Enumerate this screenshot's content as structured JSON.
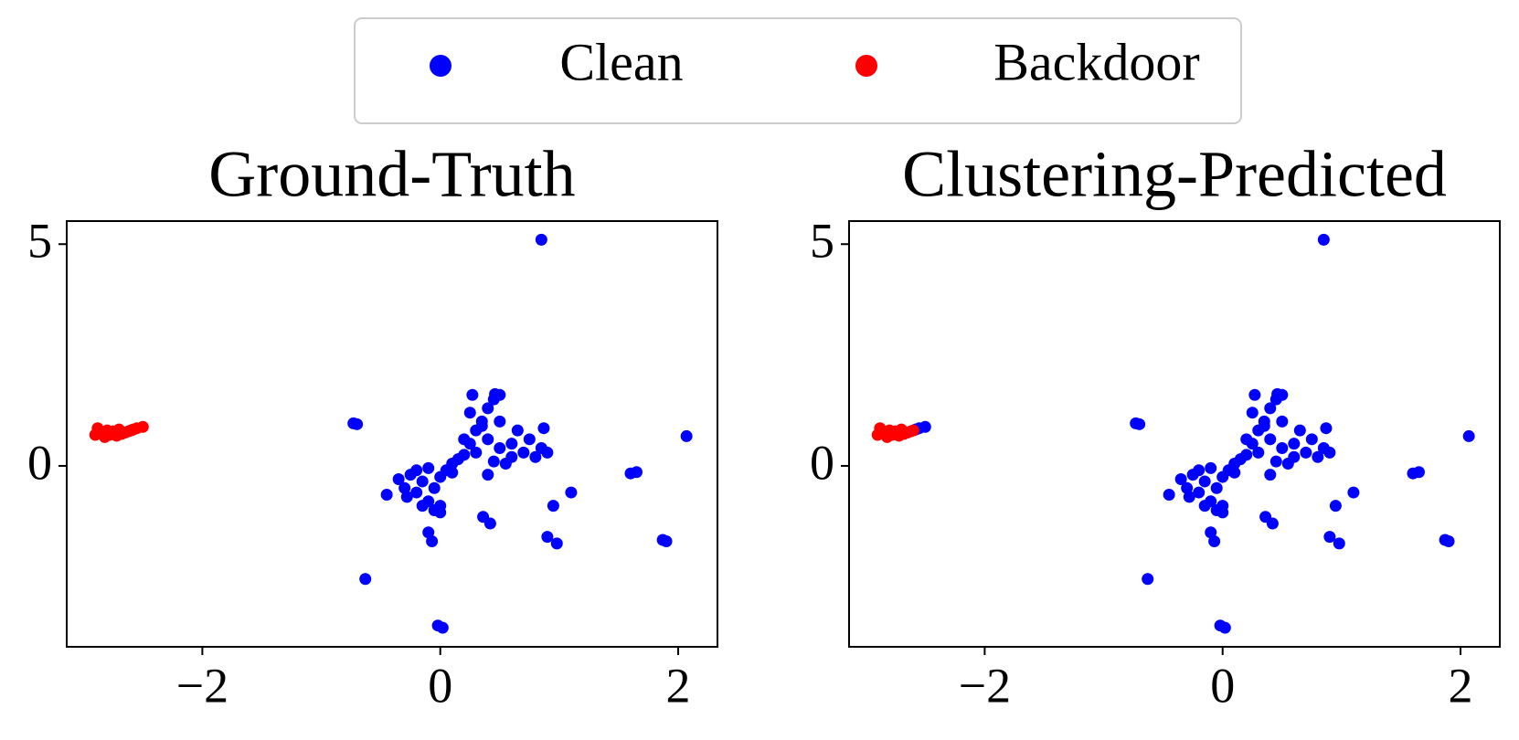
{
  "chart_data": [
    {
      "type": "scatter",
      "title": "Ground-Truth",
      "xlim": [
        -3.14,
        2.33
      ],
      "ylim": [
        -4.08,
        5.52
      ],
      "xticks": [
        {
          "value": -2,
          "label": "−2"
        },
        0,
        2
      ],
      "yticks": [
        0,
        5
      ],
      "series": [
        {
          "name": "Clean",
          "color": "#0000ff",
          "x": [
            0.85,
            -0.73,
            -0.7,
            2.07,
            1.6,
            1.65,
            0.87,
            0.95,
            1.1,
            0.36,
            0.42,
            0.9,
            0.98,
            1.87,
            1.9,
            -0.1,
            -0.07,
            -0.63,
            -0.02,
            0.02,
            -0.45,
            0.27,
            0.46,
            -0.35,
            -0.3,
            -0.25,
            -0.2,
            -0.15,
            -0.1,
            -0.05,
            0,
            0,
            -0.2,
            -0.1,
            -0.28,
            -0.05,
            0,
            -0.15,
            0.05,
            0.1,
            0.15,
            0.2,
            0.1,
            0.25,
            0.3,
            0.35,
            0.4,
            0.45,
            0.5,
            0.3,
            0.4,
            0.5,
            0.6,
            0.7,
            0.75,
            0.8,
            0.45,
            0.55,
            0.35,
            0.25,
            0.65,
            0.85,
            0.6,
            0.2,
            0.5,
            0.4,
            0.9
          ],
          "y": [
            5.1,
            0.96,
            0.94,
            0.67,
            -0.17,
            -0.14,
            0.85,
            -0.9,
            -0.6,
            -1.15,
            -1.3,
            -1.6,
            -1.75,
            -1.67,
            -1.7,
            -1.5,
            -1.7,
            -2.55,
            -3.6,
            -3.65,
            -0.65,
            1.6,
            1.62,
            -0.3,
            -0.5,
            -0.2,
            -0.6,
            -0.35,
            -0.8,
            -0.5,
            -0.9,
            -0.25,
            -0.1,
            -0.05,
            -0.7,
            -1.0,
            -1.05,
            -0.9,
            -0.1,
            0.05,
            0.15,
            0.25,
            -0.15,
            0.5,
            0.8,
            1.0,
            1.3,
            1.5,
            1.6,
            0.3,
            0.6,
            0.4,
            0.5,
            0.3,
            0.6,
            0.2,
            0.1,
            0.05,
            0.9,
            1.2,
            0.8,
            0.4,
            0.2,
            0.6,
            1.0,
            -0.2,
            0.3
          ]
        },
        {
          "name": "Backdoor",
          "color": "#ff0000",
          "x": [
            -2.9,
            -2.88,
            -2.85,
            -2.82,
            -2.8,
            -2.78,
            -2.75,
            -2.72,
            -2.7,
            -2.68,
            -2.65,
            -2.62,
            -2.6,
            -2.58,
            -2.55,
            -2.5
          ],
          "y": [
            0.7,
            0.85,
            0.75,
            0.65,
            0.8,
            0.7,
            0.78,
            0.68,
            0.82,
            0.72,
            0.75,
            0.78,
            0.8,
            0.82,
            0.85,
            0.88
          ]
        }
      ]
    },
    {
      "type": "scatter",
      "title": "Clustering-Predicted",
      "xlim": [
        -3.14,
        2.33
      ],
      "ylim": [
        -4.08,
        5.52
      ],
      "xticks": [
        {
          "value": -2,
          "label": "−2"
        },
        0,
        2
      ],
      "yticks": [
        0,
        5
      ],
      "series": [
        {
          "color": "#0000ff",
          "x": [
            0.85,
            -0.73,
            -0.7,
            2.07,
            1.6,
            1.65,
            0.87,
            0.95,
            1.1,
            0.36,
            0.42,
            0.9,
            0.98,
            1.87,
            1.9,
            -0.1,
            -0.07,
            -0.63,
            -0.02,
            0.02,
            -0.45,
            0.27,
            0.46,
            -0.35,
            -0.3,
            -0.25,
            -0.2,
            -0.15,
            -0.1,
            -0.05,
            0,
            0,
            -0.2,
            -0.1,
            -0.28,
            -0.05,
            0,
            -0.15,
            0.05,
            0.1,
            0.15,
            0.2,
            0.1,
            0.25,
            0.3,
            0.35,
            0.4,
            0.45,
            0.5,
            0.3,
            0.4,
            0.5,
            0.6,
            0.7,
            0.75,
            0.8,
            0.45,
            0.55,
            0.35,
            0.25,
            0.65,
            0.85,
            0.6,
            0.2,
            0.5,
            0.4,
            0.9,
            -2.58,
            -2.55,
            -2.5
          ],
          "y": [
            5.1,
            0.96,
            0.94,
            0.67,
            -0.17,
            -0.14,
            0.85,
            -0.9,
            -0.6,
            -1.15,
            -1.3,
            -1.6,
            -1.75,
            -1.67,
            -1.7,
            -1.5,
            -1.7,
            -2.55,
            -3.6,
            -3.65,
            -0.65,
            1.6,
            1.62,
            -0.3,
            -0.5,
            -0.2,
            -0.6,
            -0.35,
            -0.8,
            -0.5,
            -0.9,
            -0.25,
            -0.1,
            -0.05,
            -0.7,
            -1.0,
            -1.05,
            -0.9,
            -0.1,
            0.05,
            0.15,
            0.25,
            -0.15,
            0.5,
            0.8,
            1.0,
            1.3,
            1.5,
            1.6,
            0.3,
            0.6,
            0.4,
            0.5,
            0.3,
            0.6,
            0.2,
            0.1,
            0.05,
            0.9,
            1.2,
            0.8,
            0.4,
            0.2,
            0.6,
            1.0,
            -0.2,
            0.3,
            0.82,
            0.85,
            0.88
          ]
        },
        {
          "color": "#ff0000",
          "x": [
            -2.9,
            -2.88,
            -2.85,
            -2.82,
            -2.8,
            -2.78,
            -2.75,
            -2.72,
            -2.7,
            -2.68,
            -2.65,
            -2.62,
            -2.6
          ],
          "y": [
            0.7,
            0.85,
            0.75,
            0.65,
            0.8,
            0.7,
            0.78,
            0.68,
            0.82,
            0.72,
            0.75,
            0.78,
            0.8
          ]
        }
      ]
    }
  ]
}
